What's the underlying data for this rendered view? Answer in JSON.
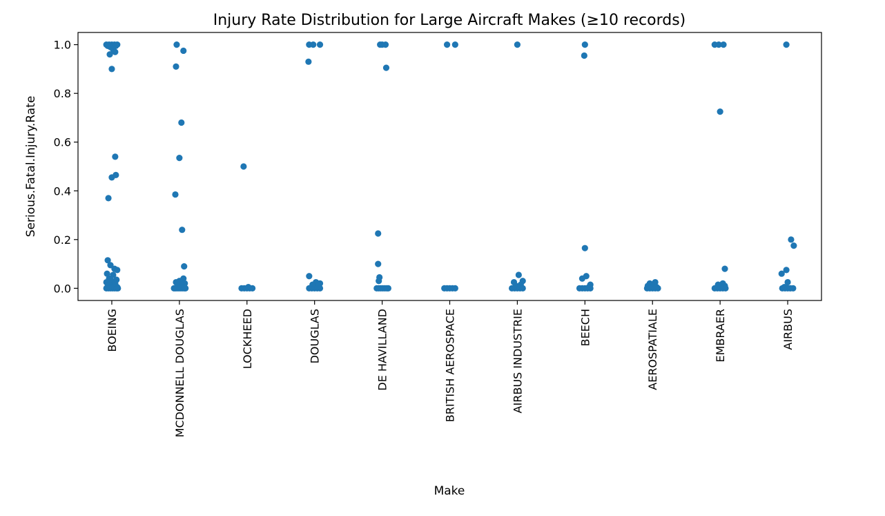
{
  "chart_data": {
    "type": "scatter",
    "subtype": "strip",
    "title": "Injury Rate Distribution for Large Aircraft Makes (≥10 records)",
    "xlabel": "Make",
    "ylabel": "Serious.Fatal.Injury.Rate",
    "ylim": [
      -0.05,
      1.05
    ],
    "y_ticks": [
      "0.0",
      "0.2",
      "0.4",
      "0.6",
      "0.8",
      "1.0"
    ],
    "grid": false,
    "color": "#1f77b4",
    "categories": [
      "BOEING",
      "MCDONNELL DOUGLAS",
      "LOCKHEED",
      "DOUGLAS",
      "DE HAVILLAND",
      "BRITISH AEROSPACE",
      "AIRBUS INDUSTRIE",
      "BEECH",
      "AEROSPATIALE",
      "EMBRAER",
      "AIRBUS"
    ],
    "points": [
      [
        [
          -0.08,
          1.0
        ],
        [
          -0.04,
          1.0
        ],
        [
          0.0,
          1.0
        ],
        [
          0.04,
          1.0
        ],
        [
          0.08,
          1.0
        ],
        [
          -0.06,
          0.995
        ],
        [
          0.06,
          0.995
        ],
        [
          -0.02,
          0.99
        ],
        [
          0.02,
          0.98
        ],
        [
          0.05,
          0.97
        ],
        [
          -0.03,
          0.96
        ],
        [
          0.0,
          0.9
        ],
        [
          0.05,
          0.54
        ],
        [
          0.06,
          0.465
        ],
        [
          0.0,
          0.455
        ],
        [
          -0.05,
          0.37
        ],
        [
          -0.06,
          0.115
        ],
        [
          -0.02,
          0.095
        ],
        [
          0.04,
          0.08
        ],
        [
          0.08,
          0.075
        ],
        [
          -0.07,
          0.06
        ],
        [
          0.02,
          0.055
        ],
        [
          -0.04,
          0.04
        ],
        [
          0.07,
          0.035
        ],
        [
          0.0,
          0.03
        ],
        [
          -0.08,
          0.025
        ],
        [
          0.05,
          0.02
        ],
        [
          -0.03,
          0.015
        ],
        [
          0.03,
          0.01
        ],
        [
          -0.06,
          0.01
        ],
        [
          0.08,
          0.005
        ],
        [
          -0.01,
          0.005
        ],
        [
          -0.08,
          0.0
        ],
        [
          -0.05,
          0.0
        ],
        [
          -0.02,
          0.0
        ],
        [
          0.01,
          0.0
        ],
        [
          0.04,
          0.0
        ],
        [
          0.07,
          0.0
        ],
        [
          0.09,
          0.0
        ]
      ],
      [
        [
          -0.04,
          1.0
        ],
        [
          0.06,
          0.975
        ],
        [
          -0.05,
          0.91
        ],
        [
          0.03,
          0.68
        ],
        [
          0.0,
          0.535
        ],
        [
          -0.06,
          0.385
        ],
        [
          0.04,
          0.24
        ],
        [
          0.07,
          0.09
        ],
        [
          0.06,
          0.04
        ],
        [
          0.0,
          0.03
        ],
        [
          -0.05,
          0.025
        ],
        [
          0.08,
          0.02
        ],
        [
          0.03,
          0.015
        ],
        [
          -0.03,
          0.01
        ],
        [
          0.06,
          0.005
        ],
        [
          -0.08,
          0.0
        ],
        [
          -0.05,
          0.0
        ],
        [
          -0.02,
          0.0
        ],
        [
          0.01,
          0.0
        ],
        [
          0.04,
          0.0
        ],
        [
          0.07,
          0.0
        ],
        [
          0.09,
          0.0
        ]
      ],
      [
        [
          -0.05,
          0.5
        ],
        [
          -0.08,
          0.0
        ],
        [
          -0.04,
          0.0
        ],
        [
          0.0,
          0.0
        ],
        [
          0.04,
          0.0
        ],
        [
          0.08,
          0.0
        ],
        [
          0.02,
          0.005
        ]
      ],
      [
        [
          -0.08,
          1.0
        ],
        [
          -0.02,
          1.0
        ],
        [
          0.08,
          1.0
        ],
        [
          -0.09,
          0.93
        ],
        [
          -0.08,
          0.05
        ],
        [
          0.02,
          0.025
        ],
        [
          0.08,
          0.02
        ],
        [
          -0.03,
          0.015
        ],
        [
          0.05,
          0.01
        ],
        [
          -0.08,
          0.0
        ],
        [
          -0.04,
          0.0
        ],
        [
          0.0,
          0.0
        ],
        [
          0.04,
          0.0
        ],
        [
          0.08,
          0.0
        ]
      ],
      [
        [
          -0.03,
          1.0
        ],
        [
          0.0,
          1.0
        ],
        [
          0.05,
          1.0
        ],
        [
          0.06,
          0.905
        ],
        [
          -0.06,
          0.225
        ],
        [
          -0.06,
          0.1
        ],
        [
          -0.04,
          0.045
        ],
        [
          -0.05,
          0.03
        ],
        [
          -0.08,
          0.0
        ],
        [
          -0.05,
          0.0
        ],
        [
          -0.02,
          0.0
        ],
        [
          0.01,
          0.0
        ],
        [
          0.04,
          0.0
        ],
        [
          0.07,
          0.0
        ],
        [
          0.09,
          0.0
        ]
      ],
      [
        [
          -0.04,
          1.0
        ],
        [
          0.08,
          1.0
        ],
        [
          -0.08,
          0.0
        ],
        [
          -0.04,
          0.0
        ],
        [
          0.0,
          0.0
        ],
        [
          0.04,
          0.0
        ],
        [
          0.08,
          0.0
        ]
      ],
      [
        [
          0.0,
          1.0
        ],
        [
          0.02,
          0.055
        ],
        [
          -0.05,
          0.025
        ],
        [
          0.08,
          0.03
        ],
        [
          0.05,
          0.015
        ],
        [
          -0.02,
          0.01
        ],
        [
          -0.08,
          0.0
        ],
        [
          -0.04,
          0.0
        ],
        [
          0.0,
          0.0
        ],
        [
          0.04,
          0.0
        ],
        [
          0.08,
          0.0
        ]
      ],
      [
        [
          0.0,
          1.0
        ],
        [
          -0.01,
          0.955
        ],
        [
          0.0,
          0.165
        ],
        [
          0.02,
          0.05
        ],
        [
          -0.04,
          0.04
        ],
        [
          0.08,
          0.015
        ],
        [
          0.06,
          0.005
        ],
        [
          -0.08,
          0.0
        ],
        [
          -0.04,
          0.0
        ],
        [
          0.0,
          0.0
        ],
        [
          0.04,
          0.0
        ],
        [
          0.08,
          0.0
        ]
      ],
      [
        [
          0.04,
          0.025
        ],
        [
          -0.04,
          0.02
        ],
        [
          0.0,
          0.015
        ],
        [
          -0.07,
          0.01
        ],
        [
          0.06,
          0.005
        ],
        [
          -0.08,
          0.0
        ],
        [
          -0.04,
          0.0
        ],
        [
          0.0,
          0.0
        ],
        [
          0.04,
          0.0
        ],
        [
          0.08,
          0.0
        ]
      ],
      [
        [
          -0.08,
          1.0
        ],
        [
          -0.02,
          1.0
        ],
        [
          0.05,
          1.0
        ],
        [
          0.0,
          0.725
        ],
        [
          0.07,
          0.08
        ],
        [
          0.04,
          0.02
        ],
        [
          -0.03,
          0.015
        ],
        [
          0.07,
          0.01
        ],
        [
          -0.08,
          0.0
        ],
        [
          -0.04,
          0.0
        ],
        [
          0.0,
          0.0
        ],
        [
          0.04,
          0.0
        ],
        [
          0.08,
          0.0
        ]
      ],
      [
        [
          -0.02,
          1.0
        ],
        [
          0.05,
          0.2
        ],
        [
          0.09,
          0.175
        ],
        [
          -0.02,
          0.075
        ],
        [
          -0.09,
          0.06
        ],
        [
          0.0,
          0.025
        ],
        [
          -0.05,
          0.005
        ],
        [
          -0.08,
          0.0
        ],
        [
          -0.04,
          0.0
        ],
        [
          0.0,
          0.0
        ],
        [
          0.04,
          0.0
        ],
        [
          0.08,
          0.0
        ]
      ]
    ]
  }
}
